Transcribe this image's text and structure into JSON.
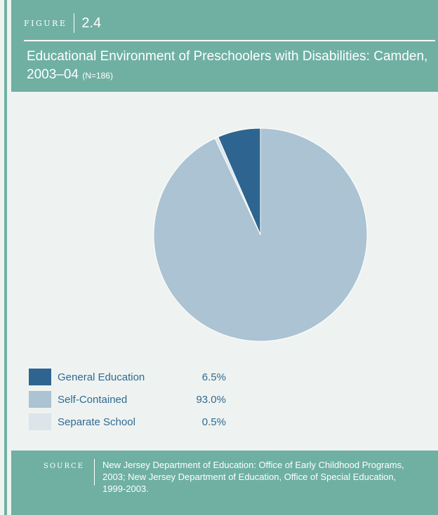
{
  "figure": {
    "word": "Figure",
    "number": "2.4"
  },
  "title": {
    "main": "Educational Environment of Preschoolers with Disabilities: Camden, 2003–04",
    "n": "(N=186)"
  },
  "chart_data": {
    "type": "pie",
    "title": "Educational Environment of Preschoolers with Disabilities: Camden, 2003–04",
    "categories": [
      "General Education",
      "Self-Contained",
      "Separate School"
    ],
    "values": [
      6.5,
      93.0,
      0.5
    ],
    "value_labels": [
      "6.5%",
      "93.0%",
      "0.5%"
    ],
    "colors": [
      "#2e6590",
      "#abc3d2",
      "#dbe5ea"
    ],
    "legend_position": "bottom-left"
  },
  "source": {
    "word": "Source",
    "text": "New Jersey Department of Education: Office of Early Childhood Programs, 2003; New Jersey Department of Education, Office of Special Education, 1999-2003."
  },
  "colors": {
    "teal": "#6fb0a2",
    "background": "#eef3f1",
    "legend_text": "#2f6a92"
  }
}
